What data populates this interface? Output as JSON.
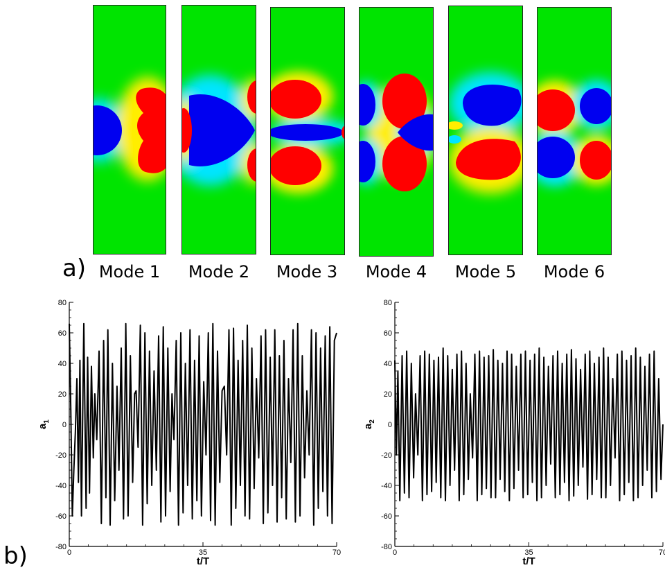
{
  "panel_a": {
    "label": "a)",
    "modes": [
      {
        "label": "Mode 1",
        "colors": {
          "pos": "#ff0000",
          "neg": "#0000ff",
          "bg": "#00e400"
        }
      },
      {
        "label": "Mode 2"
      },
      {
        "label": "Mode 3"
      },
      {
        "label": "Mode 4"
      },
      {
        "label": "Mode 5"
      },
      {
        "label": "Mode 6"
      }
    ]
  },
  "panel_b": {
    "label": "b)"
  },
  "chart_data": [
    {
      "type": "line",
      "title": "",
      "xlabel": "t/T",
      "ylabel": "a",
      "ylabel_sub": "1",
      "xlim": [
        0,
        70
      ],
      "ylim": [
        -80,
        80
      ],
      "x_ticks": [
        0,
        35,
        70
      ],
      "y_ticks": [
        80,
        60,
        40,
        20,
        0,
        -20,
        -40,
        -60,
        -80
      ],
      "x_tick_labels": [
        "0",
        "35",
        "70"
      ],
      "y_tick_labels": [
        "80",
        "60",
        "40",
        "20",
        "0",
        "-20",
        "-40",
        "-60",
        "-80"
      ],
      "grid": false,
      "series": [
        {
          "color": "#000000",
          "values": [
            [
              0,
              66
            ],
            [
              0.4,
              10
            ],
            [
              0.8,
              -60
            ],
            [
              1.2,
              -30
            ],
            [
              1.6,
              -5
            ],
            [
              2.0,
              30
            ],
            [
              2.4,
              -38
            ],
            [
              2.8,
              42
            ],
            [
              3.2,
              -60
            ],
            [
              3.8,
              66
            ],
            [
              4.4,
              -55
            ],
            [
              4.8,
              44
            ],
            [
              5.3,
              -45
            ],
            [
              5.8,
              38
            ],
            [
              6.3,
              -22
            ],
            [
              6.7,
              20
            ],
            [
              7.2,
              -10
            ],
            [
              7.8,
              48
            ],
            [
              8.4,
              -65
            ],
            [
              9.0,
              55
            ],
            [
              9.6,
              -48
            ],
            [
              10.1,
              62
            ],
            [
              10.7,
              -66
            ],
            [
              11.3,
              40
            ],
            [
              11.9,
              -50
            ],
            [
              12.5,
              25
            ],
            [
              13.0,
              -30
            ],
            [
              13.6,
              50
            ],
            [
              14.2,
              -62
            ],
            [
              14.8,
              66
            ],
            [
              15.4,
              -60
            ],
            [
              16.0,
              45
            ],
            [
              16.6,
              -38
            ],
            [
              17.1,
              20
            ],
            [
              17.5,
              22
            ],
            [
              18.0,
              -15
            ],
            [
              18.6,
              65
            ],
            [
              19.2,
              -66
            ],
            [
              19.8,
              60
            ],
            [
              20.4,
              -52
            ],
            [
              21.0,
              48
            ],
            [
              21.6,
              -40
            ],
            [
              22.2,
              35
            ],
            [
              22.8,
              -30
            ],
            [
              23.4,
              58
            ],
            [
              24.0,
              -64
            ],
            [
              24.6,
              64
            ],
            [
              25.2,
              -60
            ],
            [
              25.8,
              50
            ],
            [
              26.4,
              -44
            ],
            [
              26.9,
              20
            ],
            [
              27.4,
              -10
            ],
            [
              28.0,
              55
            ],
            [
              28.6,
              -66
            ],
            [
              29.2,
              60
            ],
            [
              29.8,
              -58
            ],
            [
              30.4,
              40
            ],
            [
              31.0,
              -40
            ],
            [
              31.6,
              62
            ],
            [
              32.2,
              -62
            ],
            [
              32.8,
              42
            ],
            [
              33.4,
              -50
            ],
            [
              34.0,
              58
            ],
            [
              34.6,
              -60
            ],
            [
              35.2,
              28
            ],
            [
              35.8,
              -20
            ],
            [
              36.4,
              60
            ],
            [
              37.0,
              -63
            ],
            [
              37.6,
              66
            ],
            [
              38.2,
              -66
            ],
            [
              38.8,
              48
            ],
            [
              39.4,
              -38
            ],
            [
              40.0,
              22
            ],
            [
              40.6,
              25
            ],
            [
              41.2,
              -20
            ],
            [
              41.8,
              62
            ],
            [
              42.4,
              -66
            ],
            [
              43.0,
              63
            ],
            [
              43.6,
              -55
            ],
            [
              44.2,
              42
            ],
            [
              44.8,
              -40
            ],
            [
              45.4,
              55
            ],
            [
              46.0,
              -60
            ],
            [
              46.6,
              65
            ],
            [
              47.2,
              -62
            ],
            [
              47.8,
              50
            ],
            [
              48.4,
              -42
            ],
            [
              49.0,
              30
            ],
            [
              49.6,
              -22
            ],
            [
              50.2,
              58
            ],
            [
              50.8,
              -65
            ],
            [
              51.4,
              62
            ],
            [
              52.0,
              -58
            ],
            [
              52.6,
              44
            ],
            [
              53.2,
              -40
            ],
            [
              53.8,
              62
            ],
            [
              54.4,
              -64
            ],
            [
              55.0,
              45
            ],
            [
              55.6,
              -48
            ],
            [
              56.2,
              55
            ],
            [
              56.8,
              -62
            ],
            [
              57.4,
              30
            ],
            [
              58.0,
              -25
            ],
            [
              58.6,
              62
            ],
            [
              59.2,
              -64
            ],
            [
              59.8,
              66
            ],
            [
              60.4,
              -60
            ],
            [
              61.0,
              45
            ],
            [
              61.6,
              -35
            ],
            [
              62.2,
              22
            ],
            [
              62.8,
              -20
            ],
            [
              63.4,
              62
            ],
            [
              64.0,
              -66
            ],
            [
              64.6,
              60
            ],
            [
              65.2,
              -55
            ],
            [
              65.8,
              50
            ],
            [
              66.4,
              -44
            ],
            [
              67.0,
              58
            ],
            [
              67.6,
              -60
            ],
            [
              68.2,
              64
            ],
            [
              68.8,
              -65
            ],
            [
              69.4,
              55
            ],
            [
              70.0,
              60
            ]
          ]
        }
      ]
    },
    {
      "type": "line",
      "title": "",
      "xlabel": "t/T",
      "ylabel": "a",
      "ylabel_sub": "2",
      "xlim": [
        0,
        70
      ],
      "ylim": [
        -80,
        80
      ],
      "x_ticks": [
        0,
        35,
        70
      ],
      "y_ticks": [
        80,
        60,
        40,
        20,
        0,
        -20,
        -40,
        -60,
        -80
      ],
      "x_tick_labels": [
        "0",
        "35",
        "70"
      ],
      "y_tick_labels": [
        "80",
        "60",
        "40",
        "20",
        "0",
        "-20",
        "-40",
        "-60",
        "-80"
      ],
      "grid": false,
      "series": [
        {
          "color": "#000000",
          "values": [
            [
              0,
              42
            ],
            [
              0.4,
              -20
            ],
            [
              0.8,
              35
            ],
            [
              1.3,
              -50
            ],
            [
              1.9,
              45
            ],
            [
              2.5,
              -45
            ],
            [
              3.1,
              48
            ],
            [
              3.7,
              -48
            ],
            [
              4.3,
              40
            ],
            [
              4.9,
              -35
            ],
            [
              5.4,
              20
            ],
            [
              6.0,
              -20
            ],
            [
              6.6,
              45
            ],
            [
              7.2,
              -50
            ],
            [
              7.8,
              48
            ],
            [
              8.4,
              -46
            ],
            [
              9.0,
              46
            ],
            [
              9.6,
              -44
            ],
            [
              10.2,
              42
            ],
            [
              10.8,
              -38
            ],
            [
              11.4,
              44
            ],
            [
              12.0,
              -48
            ],
            [
              12.6,
              50
            ],
            [
              13.2,
              -50
            ],
            [
              13.8,
              45
            ],
            [
              14.4,
              -40
            ],
            [
              15.0,
              36
            ],
            [
              15.6,
              -30
            ],
            [
              16.2,
              46
            ],
            [
              16.8,
              -50
            ],
            [
              17.4,
              48
            ],
            [
              18.0,
              -46
            ],
            [
              18.6,
              40
            ],
            [
              19.2,
              -36
            ],
            [
              19.7,
              20
            ],
            [
              20.3,
              -22
            ],
            [
              20.9,
              46
            ],
            [
              21.5,
              -50
            ],
            [
              22.1,
              48
            ],
            [
              22.7,
              -46
            ],
            [
              23.3,
              44
            ],
            [
              23.9,
              -42
            ],
            [
              24.5,
              45
            ],
            [
              25.1,
              -48
            ],
            [
              25.7,
              49
            ],
            [
              26.3,
              -48
            ],
            [
              26.9,
              42
            ],
            [
              27.5,
              -36
            ],
            [
              28.1,
              40
            ],
            [
              28.7,
              -44
            ],
            [
              29.3,
              48
            ],
            [
              29.9,
              -50
            ],
            [
              30.5,
              46
            ],
            [
              31.1,
              -42
            ],
            [
              31.7,
              38
            ],
            [
              32.3,
              -30
            ],
            [
              32.9,
              46
            ],
            [
              33.5,
              -48
            ],
            [
              34.1,
              48
            ],
            [
              34.7,
              -46
            ],
            [
              35.3,
              42
            ],
            [
              35.9,
              -38
            ],
            [
              36.5,
              46
            ],
            [
              37.1,
              -50
            ],
            [
              37.7,
              50
            ],
            [
              38.3,
              -48
            ],
            [
              38.9,
              44
            ],
            [
              39.5,
              -40
            ],
            [
              40.1,
              38
            ],
            [
              40.7,
              -26
            ],
            [
              41.3,
              45
            ],
            [
              41.9,
              -48
            ],
            [
              42.5,
              48
            ],
            [
              43.1,
              -46
            ],
            [
              43.7,
              40
            ],
            [
              44.3,
              -38
            ],
            [
              44.9,
              46
            ],
            [
              45.5,
              -50
            ],
            [
              46.1,
              49
            ],
            [
              46.7,
              -47
            ],
            [
              47.3,
              43
            ],
            [
              47.9,
              -40
            ],
            [
              48.5,
              36
            ],
            [
              49.1,
              -28
            ],
            [
              49.7,
              46
            ],
            [
              50.3,
              -49
            ],
            [
              50.9,
              48
            ],
            [
              51.5,
              -46
            ],
            [
              52.1,
              40
            ],
            [
              52.7,
              -36
            ],
            [
              53.3,
              44
            ],
            [
              53.9,
              -48
            ],
            [
              54.5,
              50
            ],
            [
              55.1,
              -48
            ],
            [
              55.7,
              44
            ],
            [
              56.3,
              -40
            ],
            [
              56.9,
              30
            ],
            [
              57.5,
              -22
            ],
            [
              58.1,
              46
            ],
            [
              58.7,
              -50
            ],
            [
              59.3,
              48
            ],
            [
              59.9,
              -46
            ],
            [
              60.5,
              42
            ],
            [
              61.1,
              -38
            ],
            [
              61.7,
              45
            ],
            [
              62.3,
              -50
            ],
            [
              62.9,
              50
            ],
            [
              63.5,
              -48
            ],
            [
              64.1,
              44
            ],
            [
              64.7,
              -40
            ],
            [
              65.3,
              38
            ],
            [
              65.9,
              -30
            ],
            [
              66.5,
              46
            ],
            [
              67.1,
              -48
            ],
            [
              67.7,
              48
            ],
            [
              68.3,
              -44
            ],
            [
              68.9,
              30
            ],
            [
              69.5,
              -36
            ],
            [
              70.0,
              0
            ]
          ]
        }
      ]
    }
  ]
}
